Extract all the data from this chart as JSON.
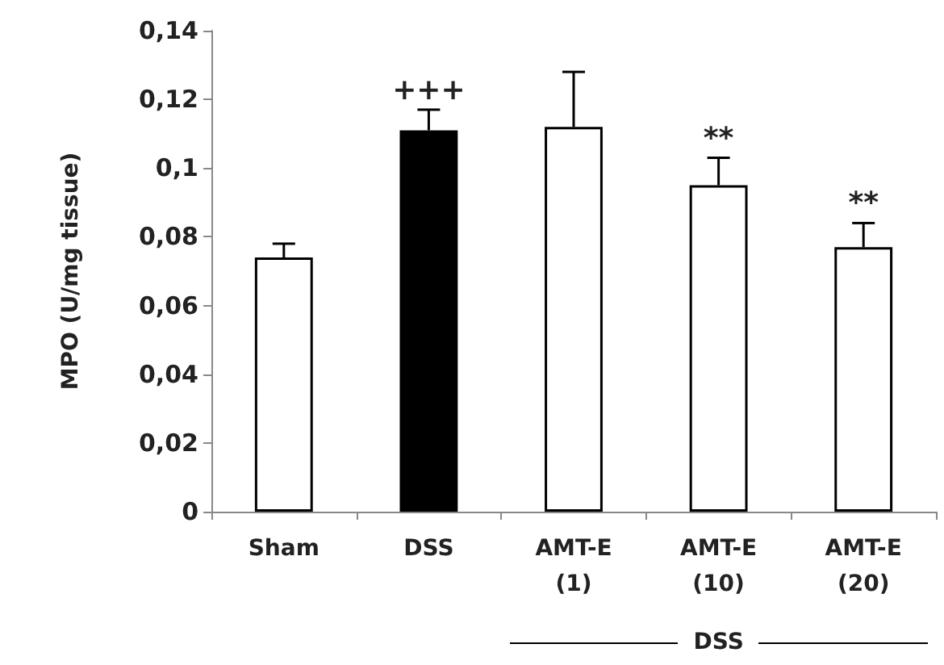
{
  "chart_data": {
    "type": "bar",
    "ylabel": "MPO (U/mg tissue)",
    "categories": [
      "Sham",
      "DSS",
      "AMT-E\n(1)",
      "AMT-E\n(10)",
      "AMT-E\n(20)"
    ],
    "values": [
      0.074,
      0.111,
      0.112,
      0.095,
      0.077
    ],
    "colors": [
      "#ffffff",
      "#000000",
      "#ffffff",
      "#ffffff",
      "#ffffff"
    ],
    "errors": [
      [
        0.074,
        0.078
      ],
      [
        0.111,
        0.117
      ],
      [
        0.112,
        0.128
      ],
      [
        0.095,
        0.103
      ],
      [
        0.077,
        0.084
      ]
    ],
    "ylim": [
      0,
      0.14
    ],
    "yticks": [
      {
        "value": 0,
        "label": "0"
      },
      {
        "value": 0.02,
        "label": "0,02"
      },
      {
        "value": 0.04,
        "label": "0,04"
      },
      {
        "value": 0.06,
        "label": "0,06"
      },
      {
        "value": 0.08,
        "label": "0,08"
      },
      {
        "value": 0.1,
        "label": "0,1"
      },
      {
        "value": 0.12,
        "label": "0,12"
      },
      {
        "value": 0.14,
        "label": "0,14"
      }
    ],
    "annotations": [
      {
        "text": "+++",
        "x": "DSS",
        "y": 0.117
      },
      {
        "text": "**",
        "x": "AMT-E\n(10)",
        "y": 0.103
      },
      {
        "text": "**",
        "x": "AMT-E\n(20)",
        "y": 0.084
      },
      "DSS"
    ],
    "grid": false
  }
}
